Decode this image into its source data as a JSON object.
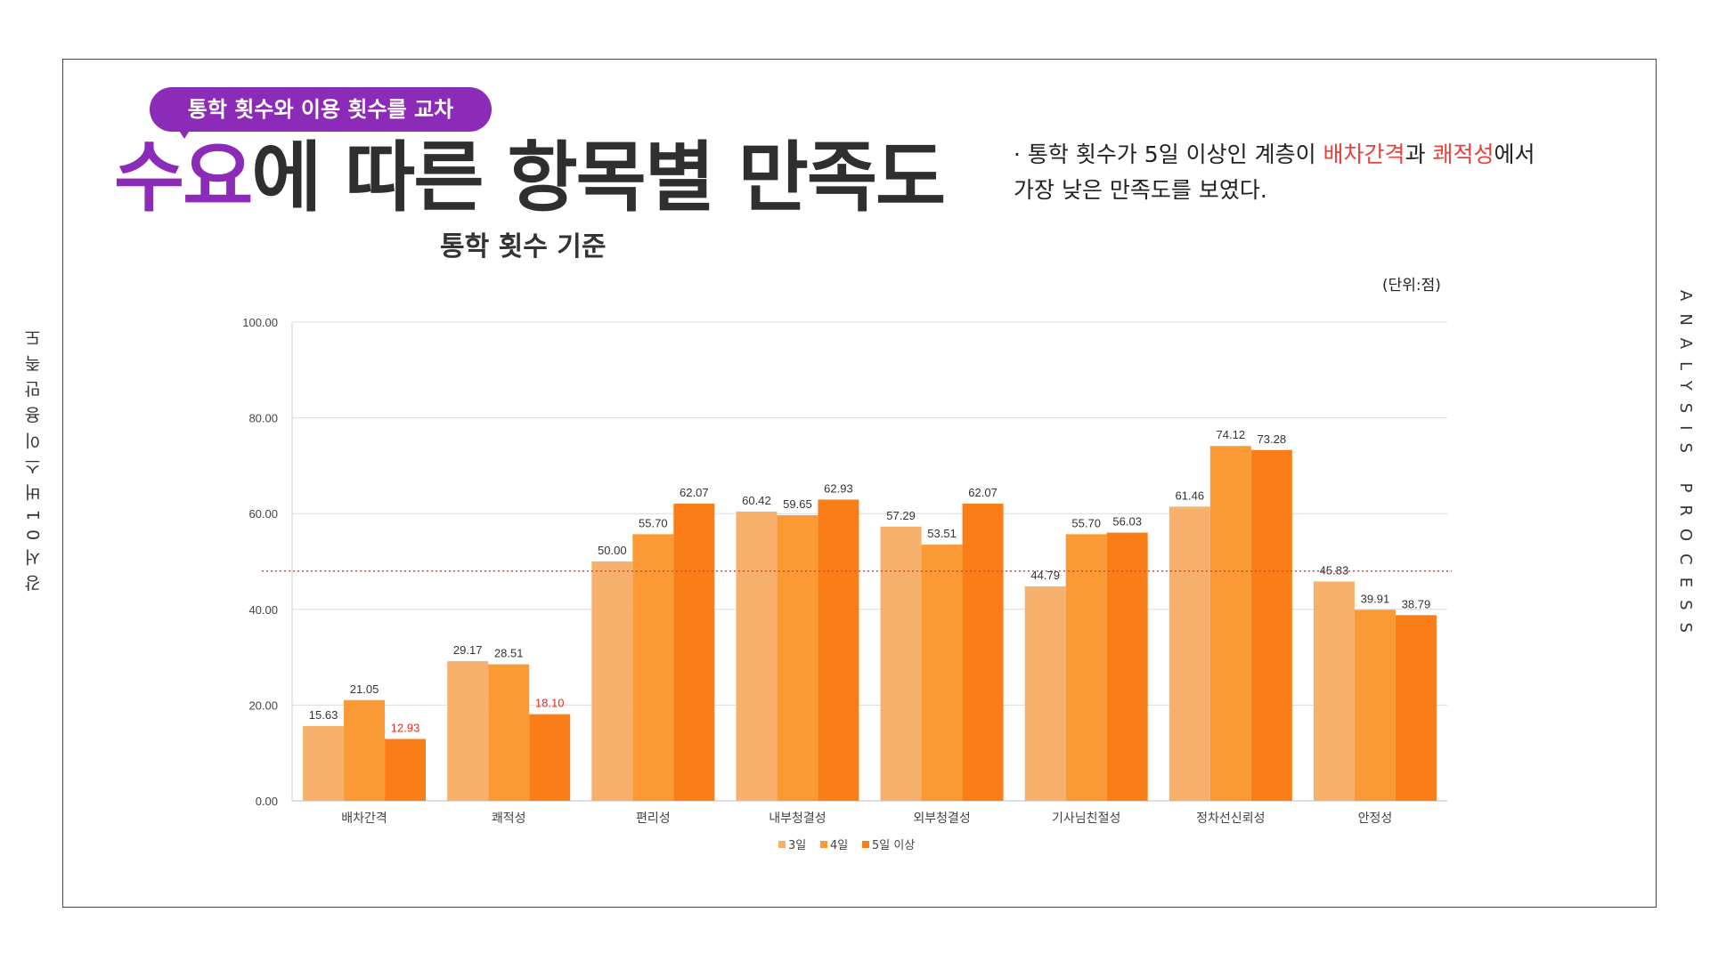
{
  "side": {
    "left_text": "강서01버스이용만족도",
    "right_text": "ANALYSIS PROCESS"
  },
  "header": {
    "pill_text": "통학 횟수와 이용 횟수를 교차",
    "title_highlight": "수요",
    "title_rest": "에 따른 항목별 만족도",
    "subtitle": "통학 횟수 기준",
    "unit": "(단위:점)"
  },
  "note": {
    "line1_prefix": "· 통학 횟수가 5일 이상인 계층이 ",
    "line1_red1": "배차간격",
    "line1_mid": "과 ",
    "line1_red2": "쾌적성",
    "line1_suffix": "에서",
    "line2": "가장 낮은 만족도를 보였다."
  },
  "colors": {
    "purple": "#8c2bb7",
    "series": [
      "#f7b16c",
      "#fb9a34",
      "#fb7d17"
    ],
    "highlight_label": "#e8281e",
    "reference_line": "#e8413c"
  },
  "chart_data": {
    "type": "bar",
    "categories": [
      "배차간격",
      "쾌적성",
      "편리성",
      "내부청결성",
      "외부청결성",
      "기사님친절성",
      "정차선신뢰성",
      "안정성"
    ],
    "series": [
      {
        "name": "3일",
        "values": [
          15.63,
          29.17,
          50.0,
          60.42,
          57.29,
          44.79,
          61.46,
          45.83
        ]
      },
      {
        "name": "4일",
        "values": [
          21.05,
          28.51,
          55.7,
          59.65,
          53.51,
          55.7,
          74.12,
          39.91
        ]
      },
      {
        "name": "5일 이상",
        "values": [
          12.93,
          18.1,
          62.07,
          62.93,
          62.07,
          56.03,
          73.28,
          38.79
        ]
      }
    ],
    "highlighted_labels": [
      [
        2,
        0
      ],
      [
        2,
        1
      ]
    ],
    "reference_line": 48,
    "yticks": [
      "0.00",
      "20.00",
      "40.00",
      "60.00",
      "80.00",
      "100.00"
    ],
    "ylim": [
      0,
      100
    ],
    "grid": true,
    "legend_position": "bottom"
  }
}
